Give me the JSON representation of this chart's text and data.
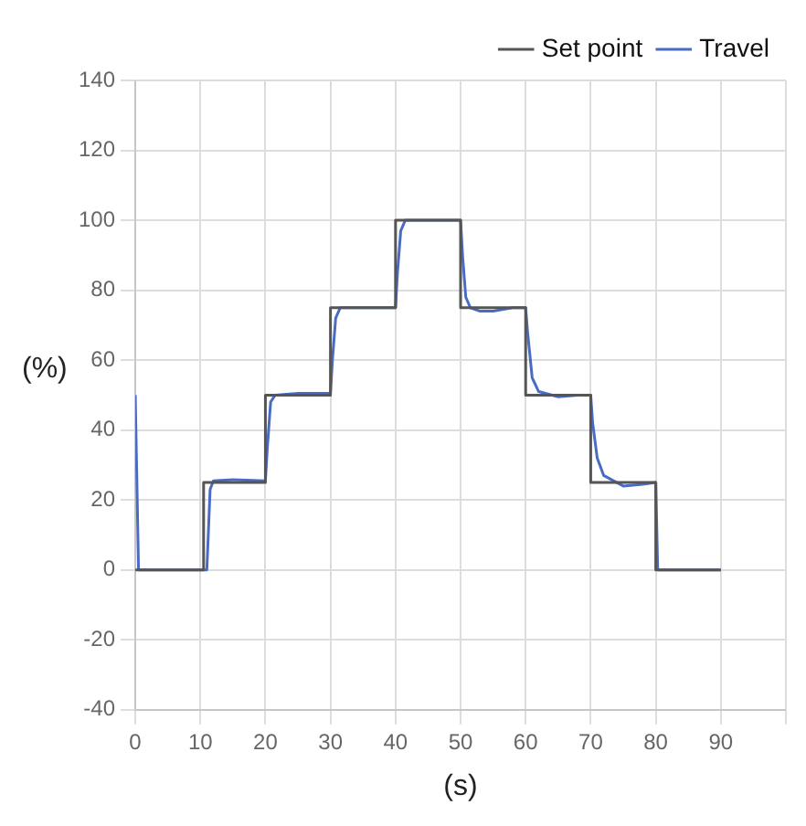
{
  "chart_data": {
    "type": "line",
    "xlabel": "(s)",
    "ylabel": "(%)",
    "xlim": [
      0,
      100
    ],
    "ylim": [
      -40,
      140
    ],
    "xticks": [
      0,
      10,
      20,
      30,
      40,
      50,
      60,
      70,
      80,
      90,
      {
        "value": 100,
        "label": null
      }
    ],
    "yticks": [
      -40,
      -20,
      0,
      20,
      40,
      60,
      80,
      100,
      120,
      140
    ],
    "grid": true,
    "legend": "top right",
    "marker": "none",
    "line_style": "solid",
    "series": [
      {
        "name": "Set point",
        "color": "#555555",
        "x": [
          0,
          10.5,
          10.5,
          20,
          20,
          30,
          30,
          40,
          40,
          50,
          50,
          60,
          60,
          70,
          70,
          80,
          80,
          90
        ],
        "values": [
          0,
          0,
          25,
          25,
          50,
          50,
          75,
          75,
          100,
          100,
          75,
          75,
          50,
          50,
          25,
          25,
          0,
          0
        ]
      },
      {
        "name": "Travel",
        "color": "#4a6bc4",
        "x": [
          0,
          0.5,
          11,
          11.5,
          12,
          15,
          20,
          20.3,
          20.8,
          21.5,
          25,
          30,
          30.3,
          30.8,
          31.5,
          40,
          40.3,
          40.8,
          41.5,
          50,
          50.3,
          50.8,
          51.5,
          53,
          55,
          58,
          60,
          60.3,
          61,
          62,
          65,
          68,
          70,
          70.3,
          71,
          72,
          75,
          78,
          80,
          80.3,
          90
        ],
        "values": [
          50,
          0,
          0,
          23,
          25.5,
          25.8,
          25.5,
          35,
          48,
          50,
          50.5,
          50.5,
          60,
          72,
          75,
          75,
          85,
          97,
          100,
          100,
          90,
          78,
          75,
          74,
          74,
          75,
          75,
          68,
          55,
          51,
          49.5,
          50,
          50,
          42,
          32,
          27,
          24,
          24.5,
          25,
          0,
          0
        ]
      }
    ]
  }
}
